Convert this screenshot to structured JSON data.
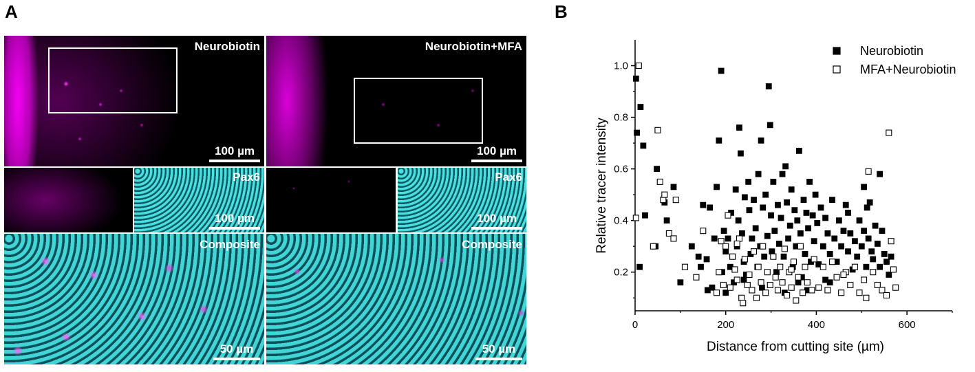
{
  "figure": {
    "panel_a_letter": "A",
    "panel_b_letter": "B"
  },
  "micrographs": {
    "top_left_label": "Neurobiotin",
    "top_right_label": "Neurobiotin+MFA",
    "mid_left_label": "Pax6",
    "mid_right_label": "Pax6",
    "bottom_left_label": "Composite",
    "bottom_right_label": "Composite",
    "scale_top_left": "100 µm",
    "scale_top_right": "100 µm",
    "scale_mid_left": "100 µm",
    "scale_mid_right": "100 µm",
    "scale_bottom_left": "50 µm",
    "scale_bottom_right": "50 µm",
    "colors": {
      "magenta": "#ff00ff",
      "cyan": "#3fe6e6",
      "background": "#000000"
    }
  },
  "chart_data": {
    "type": "scatter",
    "xlabel": "Distance from cutting site (µm)",
    "ylabel": "Relative tracer intensity",
    "xlim": [
      0,
      700
    ],
    "ylim": [
      0.05,
      1.1
    ],
    "xticks": [
      0,
      200,
      400,
      600
    ],
    "yticks": [
      0.2,
      0.4,
      0.6,
      0.8,
      1.0
    ],
    "xtick_labels": [
      "0",
      "200",
      "400",
      "600"
    ],
    "ytick_labels": [
      "0.2",
      "0.4",
      "0.6",
      "0.8",
      "1.0"
    ],
    "legend_position": "top-right",
    "series": [
      {
        "name": "Neurobiotin",
        "marker": "filled-square",
        "color": "#000000",
        "points": [
          [
            2,
            0.95
          ],
          [
            4,
            0.74
          ],
          [
            10,
            0.22
          ],
          [
            12,
            0.84
          ],
          [
            18,
            0.69
          ],
          [
            22,
            0.42
          ],
          [
            45,
            0.3
          ],
          [
            48,
            0.6
          ],
          [
            65,
            0.47
          ],
          [
            70,
            0.4
          ],
          [
            85,
            0.53
          ],
          [
            100,
            0.16
          ],
          [
            125,
            0.3
          ],
          [
            140,
            0.26
          ],
          [
            145,
            0.22
          ],
          [
            150,
            0.46
          ],
          [
            158,
            0.25
          ],
          [
            165,
            0.45
          ],
          [
            170,
            0.14
          ],
          [
            175,
            0.33
          ],
          [
            180,
            0.53
          ],
          [
            185,
            0.71
          ],
          [
            190,
            0.98
          ],
          [
            192,
            0.2
          ],
          [
            196,
            0.36
          ],
          [
            200,
            0.28
          ],
          [
            205,
            0.33
          ],
          [
            210,
            0.22
          ],
          [
            212,
            0.43
          ],
          [
            218,
            0.16
          ],
          [
            222,
            0.52
          ],
          [
            225,
            0.3
          ],
          [
            228,
            0.4
          ],
          [
            230,
            0.76
          ],
          [
            233,
            0.66
          ],
          [
            236,
            0.35
          ],
          [
            240,
            0.24
          ],
          [
            242,
            0.49
          ],
          [
            245,
            0.19
          ],
          [
            250,
            0.55
          ],
          [
            252,
            0.44
          ],
          [
            255,
            0.27
          ],
          [
            258,
            0.33
          ],
          [
            262,
            0.48
          ],
          [
            266,
            0.37
          ],
          [
            270,
            0.22
          ],
          [
            272,
            0.58
          ],
          [
            276,
            0.3
          ],
          [
            278,
            0.71
          ],
          [
            282,
            0.45
          ],
          [
            285,
            0.26
          ],
          [
            288,
            0.5
          ],
          [
            292,
            0.34
          ],
          [
            295,
            0.92
          ],
          [
            298,
            0.77
          ],
          [
            300,
            0.42
          ],
          [
            302,
            0.28
          ],
          [
            305,
            0.55
          ],
          [
            308,
            0.36
          ],
          [
            312,
            0.2
          ],
          [
            315,
            0.46
          ],
          [
            318,
            0.31
          ],
          [
            322,
            0.41
          ],
          [
            325,
            0.58
          ],
          [
            328,
            0.26
          ],
          [
            332,
            0.61
          ],
          [
            335,
            0.47
          ],
          [
            338,
            0.33
          ],
          [
            342,
            0.38
          ],
          [
            345,
            0.52
          ],
          [
            348,
            0.22
          ],
          [
            352,
            0.44
          ],
          [
            355,
            0.3
          ],
          [
            358,
            0.4
          ],
          [
            362,
            0.67
          ],
          [
            365,
            0.35
          ],
          [
            368,
            0.18
          ],
          [
            372,
            0.48
          ],
          [
            375,
            0.27
          ],
          [
            378,
            0.43
          ],
          [
            382,
            0.37
          ],
          [
            385,
            0.55
          ],
          [
            388,
            0.24
          ],
          [
            392,
            0.42
          ],
          [
            395,
            0.32
          ],
          [
            398,
            0.5
          ],
          [
            402,
            0.39
          ],
          [
            405,
            0.23
          ],
          [
            410,
            0.45
          ],
          [
            415,
            0.3
          ],
          [
            420,
            0.41
          ],
          [
            425,
            0.35
          ],
          [
            430,
            0.27
          ],
          [
            435,
            0.48
          ],
          [
            440,
            0.33
          ],
          [
            445,
            0.24
          ],
          [
            450,
            0.4
          ],
          [
            455,
            0.3
          ],
          [
            460,
            0.36
          ],
          [
            465,
            0.46
          ],
          [
            470,
            0.28
          ],
          [
            475,
            0.35
          ],
          [
            480,
            0.21
          ],
          [
            485,
            0.32
          ],
          [
            490,
            0.26
          ],
          [
            495,
            0.4
          ],
          [
            500,
            0.3
          ],
          [
            505,
            0.36
          ],
          [
            510,
            0.22
          ],
          [
            512,
            0.45
          ],
          [
            515,
            0.33
          ],
          [
            518,
            0.47
          ],
          [
            522,
            0.28
          ],
          [
            525,
            0.25
          ],
          [
            530,
            0.38
          ],
          [
            535,
            0.31
          ],
          [
            540,
            0.22
          ],
          [
            545,
            0.36
          ],
          [
            550,
            0.27
          ],
          [
            555,
            0.24
          ],
          [
            560,
            0.19
          ],
          [
            565,
            0.26
          ],
          [
            570,
            0.21
          ],
          [
            540,
            0.58
          ],
          [
            505,
            0.53
          ],
          [
            470,
            0.43
          ],
          [
            430,
            0.16
          ],
          [
            380,
            0.13
          ],
          [
            330,
            0.12
          ],
          [
            280,
            0.14
          ],
          [
            240,
            0.17
          ],
          [
            200,
            0.12
          ],
          [
            160,
            0.13
          ],
          [
            360,
            0.16
          ],
          [
            420,
            0.17
          ]
        ]
      },
      {
        "name": "MFA+Neurobiotin",
        "marker": "open-square",
        "color": "#000000",
        "points": [
          [
            2,
            0.41
          ],
          [
            8,
            1.0
          ],
          [
            40,
            0.3
          ],
          [
            50,
            0.75
          ],
          [
            55,
            0.55
          ],
          [
            62,
            0.48
          ],
          [
            65,
            0.5
          ],
          [
            75,
            0.35
          ],
          [
            85,
            0.33
          ],
          [
            90,
            0.48
          ],
          [
            110,
            0.22
          ],
          [
            135,
            0.18
          ],
          [
            150,
            0.36
          ],
          [
            180,
            0.12
          ],
          [
            185,
            0.2
          ],
          [
            190,
            0.32
          ],
          [
            195,
            0.15
          ],
          [
            200,
            0.3
          ],
          [
            205,
            0.42
          ],
          [
            210,
            0.14
          ],
          [
            215,
            0.26
          ],
          [
            220,
            0.21
          ],
          [
            225,
            0.17
          ],
          [
            230,
            0.33
          ],
          [
            235,
            0.1
          ],
          [
            238,
            0.08
          ],
          [
            242,
            0.25
          ],
          [
            248,
            0.15
          ],
          [
            252,
            0.19
          ],
          [
            258,
            0.13
          ],
          [
            262,
            0.28
          ],
          [
            268,
            0.1
          ],
          [
            272,
            0.22
          ],
          [
            278,
            0.16
          ],
          [
            282,
            0.3
          ],
          [
            288,
            0.12
          ],
          [
            292,
            0.2
          ],
          [
            298,
            0.15
          ],
          [
            305,
            0.26
          ],
          [
            310,
            0.18
          ],
          [
            315,
            0.13
          ],
          [
            320,
            0.22
          ],
          [
            325,
            0.16
          ],
          [
            330,
            0.29
          ],
          [
            335,
            0.11
          ],
          [
            340,
            0.2
          ],
          [
            345,
            0.14
          ],
          [
            350,
            0.24
          ],
          [
            355,
            0.09
          ],
          [
            360,
            0.18
          ],
          [
            365,
            0.3
          ],
          [
            370,
            0.12
          ],
          [
            375,
            0.22
          ],
          [
            380,
            0.16
          ],
          [
            390,
            0.13
          ],
          [
            395,
            0.25
          ],
          [
            405,
            0.14
          ],
          [
            415,
            0.22
          ],
          [
            425,
            0.13
          ],
          [
            435,
            0.24
          ],
          [
            445,
            0.18
          ],
          [
            455,
            0.12
          ],
          [
            465,
            0.2
          ],
          [
            475,
            0.15
          ],
          [
            485,
            0.22
          ],
          [
            495,
            0.12
          ],
          [
            505,
            0.17
          ],
          [
            510,
            0.1
          ],
          [
            515,
            0.59
          ],
          [
            525,
            0.2
          ],
          [
            535,
            0.15
          ],
          [
            545,
            0.13
          ],
          [
            555,
            0.11
          ],
          [
            560,
            0.74
          ],
          [
            565,
            0.32
          ],
          [
            570,
            0.21
          ],
          [
            575,
            0.14
          ],
          [
            225,
            0.31
          ],
          [
            345,
            0.21
          ],
          [
            460,
            0.19
          ]
        ]
      }
    ]
  }
}
